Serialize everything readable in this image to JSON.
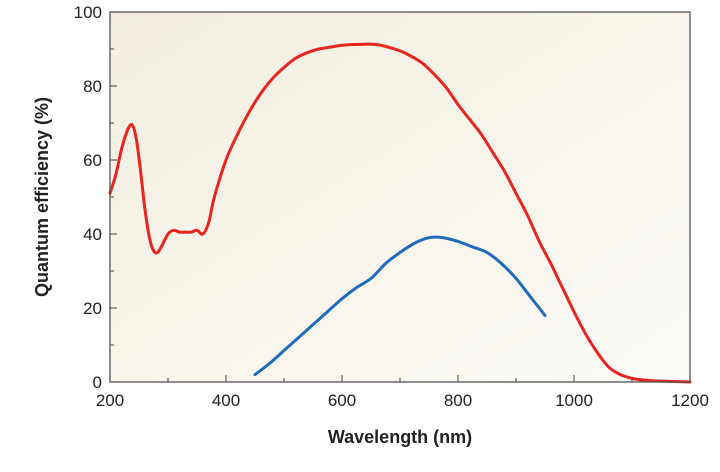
{
  "chart_data": {
    "type": "line",
    "title": "",
    "xlabel": "Wavelength (nm)",
    "ylabel": "Quantum efficiency (%)",
    "xlim": [
      200,
      1200
    ],
    "ylim": [
      0,
      100
    ],
    "xticks": [
      200,
      400,
      600,
      800,
      1000,
      1200
    ],
    "yticks": [
      0,
      20,
      40,
      60,
      80,
      100
    ],
    "grid": false,
    "legend": "none",
    "series": [
      {
        "color": "#e8251f",
        "x": [
          200,
          210,
          220,
          230,
          238,
          245,
          252,
          260,
          268,
          275,
          282,
          290,
          300,
          310,
          320,
          330,
          340,
          350,
          360,
          370,
          380,
          400,
          420,
          440,
          460,
          480,
          500,
          520,
          540,
          560,
          580,
          600,
          620,
          640,
          660,
          680,
          700,
          720,
          740,
          760,
          780,
          800,
          820,
          840,
          860,
          880,
          900,
          920,
          940,
          960,
          980,
          1000,
          1020,
          1040,
          1060,
          1080,
          1100,
          1120,
          1140,
          1160,
          1180,
          1200
        ],
        "y": [
          51,
          56,
          63,
          68,
          69.5,
          66,
          58,
          47,
          39,
          35.5,
          35,
          37,
          40,
          41,
          40.5,
          40.5,
          40.5,
          41,
          40,
          43,
          50,
          60,
          67,
          73,
          78,
          82,
          85,
          87.5,
          89,
          90,
          90.5,
          91,
          91.2,
          91.3,
          91.2,
          90.5,
          89.5,
          88,
          86,
          83,
          79.5,
          75,
          71,
          67,
          62,
          57,
          51,
          45,
          38,
          32,
          25.5,
          19,
          13,
          8,
          4,
          2,
          1,
          0.5,
          0.3,
          0.2,
          0.1,
          0
        ]
      },
      {
        "color": "#1f6bbf",
        "x": [
          450,
          475,
          500,
          525,
          550,
          575,
          600,
          625,
          650,
          675,
          700,
          725,
          750,
          775,
          800,
          825,
          850,
          875,
          900,
          925,
          950
        ],
        "y": [
          2,
          5,
          8.5,
          12,
          15.5,
          19,
          22.5,
          25.5,
          28,
          32,
          35,
          37.5,
          39,
          39,
          38,
          36.5,
          35,
          32,
          28,
          23,
          18
        ]
      }
    ]
  }
}
